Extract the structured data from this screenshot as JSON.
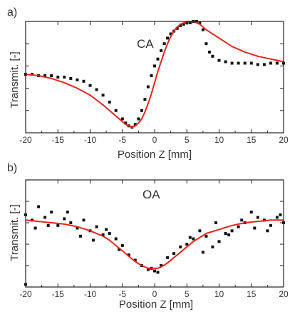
{
  "chart_data": [
    {
      "panel_label": "a)",
      "type": "scatter",
      "annotation": "CA",
      "title": "",
      "xlabel": "Position Z [mm]",
      "ylabel": "Transmit. [-]",
      "xlim": [
        -20,
        20
      ],
      "xticks": [
        "-20",
        "-15",
        "-10",
        "-5",
        "0",
        "5",
        "10",
        "15",
        "20"
      ],
      "ylim": [
        0.6,
        1.4
      ],
      "y_tick_labels": "none",
      "grid": false,
      "series": [
        {
          "style": "markers",
          "color": "#111111",
          "x": [
            -20,
            -19,
            -18,
            -17,
            -16,
            -15,
            -14,
            -13,
            -12,
            -11,
            -10,
            -9,
            -8,
            -7,
            -6,
            -5,
            -4.5,
            -4,
            -3.5,
            -3,
            -2.5,
            -2,
            -1.5,
            -1,
            -0.5,
            0,
            0.5,
            1,
            1.5,
            2,
            2.5,
            3,
            3.5,
            4,
            4.5,
            5,
            5.5,
            6,
            6.5,
            7,
            7.5,
            8,
            8.5,
            9,
            10,
            11,
            12,
            13,
            14,
            15,
            16,
            17,
            18,
            19,
            20
          ],
          "y": [
            1.02,
            1.02,
            1.01,
            1.01,
            1.01,
            1.0,
            1.0,
            0.99,
            0.98,
            0.97,
            0.94,
            0.91,
            0.87,
            0.82,
            0.76,
            0.7,
            0.67,
            0.65,
            0.64,
            0.66,
            0.7,
            0.76,
            0.84,
            0.93,
            1.01,
            1.08,
            1.13,
            1.19,
            1.24,
            1.28,
            1.31,
            1.33,
            1.35,
            1.37,
            1.38,
            1.39,
            1.39,
            1.4,
            1.4,
            1.39,
            1.34,
            1.24,
            1.18,
            1.15,
            1.12,
            1.11,
            1.1,
            1.1,
            1.1,
            1.1,
            1.09,
            1.09,
            1.1,
            1.1,
            1.1
          ]
        },
        {
          "style": "line",
          "color": "#e3261f",
          "x": [
            -20,
            -18,
            -16,
            -14,
            -12,
            -10,
            -8,
            -7,
            -6,
            -5,
            -4.5,
            -4,
            -3.5,
            -3,
            -2.5,
            -2,
            -1.5,
            -1,
            -0.5,
            0,
            0.5,
            1,
            1.5,
            2,
            2.5,
            3,
            3.5,
            4,
            4.5,
            5,
            5.5,
            6,
            6.5,
            7,
            7.5,
            8,
            9,
            10,
            11,
            12,
            14,
            16,
            18,
            20
          ],
          "y": [
            1.02,
            1.01,
            0.99,
            0.96,
            0.92,
            0.87,
            0.8,
            0.76,
            0.72,
            0.68,
            0.66,
            0.65,
            0.64,
            0.65,
            0.67,
            0.7,
            0.75,
            0.81,
            0.88,
            0.96,
            1.04,
            1.11,
            1.18,
            1.24,
            1.29,
            1.33,
            1.36,
            1.38,
            1.39,
            1.4,
            1.4,
            1.4,
            1.39,
            1.38,
            1.36,
            1.34,
            1.31,
            1.28,
            1.25,
            1.22,
            1.18,
            1.15,
            1.13,
            1.11
          ]
        }
      ]
    },
    {
      "panel_label": "b)",
      "type": "scatter",
      "annotation": "OA",
      "title": "",
      "xlabel": "Position Z [mm]",
      "ylabel": "Transmit. [-]",
      "xlim": [
        -20,
        20
      ],
      "xticks": [
        "-20",
        "-15",
        "-10",
        "-5",
        "0",
        "5",
        "10",
        "15",
        "20"
      ],
      "ylim": [
        0.6,
        1.4
      ],
      "y_tick_labels": "none",
      "grid": false,
      "series": [
        {
          "style": "markers",
          "color": "#111111",
          "x": [
            -20,
            -19,
            -18,
            -17,
            -16,
            -15,
            -14,
            -13,
            -12,
            -11,
            -10,
            -9,
            -8,
            -7,
            -6,
            -5,
            -4,
            -3,
            -2,
            -1,
            -0.5,
            0,
            0.5,
            1,
            2,
            3,
            4,
            5,
            6,
            7,
            8,
            9,
            10,
            11,
            12,
            13,
            14,
            15,
            16,
            17,
            18,
            19,
            20,
            -18.5,
            -16.5,
            -13.5,
            -11.5,
            -9.5,
            -7.5,
            -5.5,
            5.5,
            7.5,
            9.5,
            11.5,
            13.5,
            15.5,
            17.5,
            19.5,
            -20
          ],
          "y": [
            1.14,
            1.1,
            1.2,
            1.12,
            1.16,
            1.06,
            1.11,
            1.08,
            1.04,
            1.1,
            1.02,
            1.05,
            0.99,
            1.0,
            0.96,
            0.91,
            0.84,
            0.8,
            0.76,
            0.73,
            0.74,
            0.72,
            0.71,
            0.76,
            0.82,
            0.85,
            0.9,
            0.92,
            0.96,
            1.02,
            0.98,
            0.9,
            0.94,
            1.0,
            1.02,
            1.05,
            1.08,
            1.16,
            1.12,
            1.1,
            1.06,
            1.12,
            1.08,
            1.04,
            1.06,
            1.16,
            0.98,
            0.95,
            1.03,
            0.88,
            0.97,
            0.86,
            1.08,
            0.99,
            1.1,
            1.04,
            1.02,
            1.14,
            0.62
          ]
        },
        {
          "style": "line",
          "color": "#e3261f",
          "x": [
            -20,
            -18,
            -16,
            -14,
            -12,
            -10,
            -8,
            -7,
            -6,
            -5,
            -4,
            -3,
            -2,
            -1,
            -0.5,
            0,
            0.5,
            1,
            2,
            3,
            4,
            5,
            6,
            7,
            8,
            10,
            12,
            14,
            16,
            18,
            20
          ],
          "y": [
            1.1,
            1.09,
            1.08,
            1.07,
            1.05,
            1.02,
            0.98,
            0.95,
            0.91,
            0.87,
            0.83,
            0.79,
            0.76,
            0.74,
            0.74,
            0.74,
            0.74,
            0.75,
            0.78,
            0.82,
            0.86,
            0.9,
            0.94,
            0.97,
            1.0,
            1.03,
            1.06,
            1.08,
            1.09,
            1.1,
            1.1
          ]
        }
      ]
    }
  ]
}
